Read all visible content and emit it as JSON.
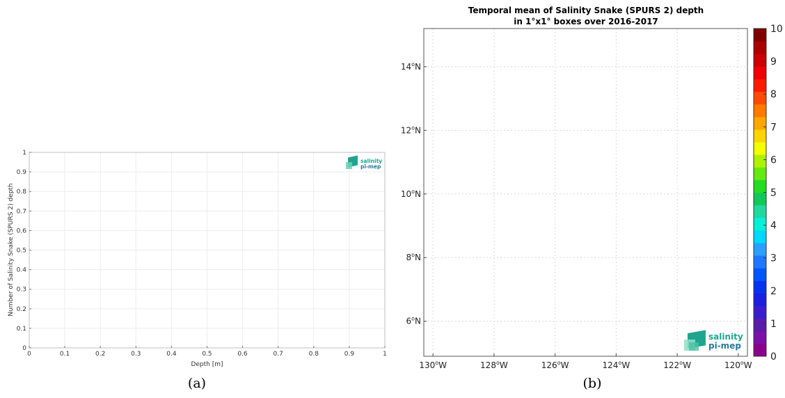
{
  "chart_data": [
    {
      "type": "line",
      "panel": "(a)",
      "title": "",
      "xlabel": "Depth [m]",
      "ylabel": "Number of Salinity Snake (SPURS 2) depth",
      "xlim": [
        0,
        1
      ],
      "ylim": [
        0,
        1
      ],
      "xticks": [
        0,
        0.1,
        0.2,
        0.3,
        0.4,
        0.5,
        0.6,
        0.7,
        0.8,
        0.9,
        1
      ],
      "yticks": [
        0,
        0.1,
        0.2,
        0.3,
        0.4,
        0.5,
        0.6,
        0.7,
        0.8,
        0.9,
        1
      ],
      "grid": true,
      "series": [],
      "logo": {
        "line1": "salinity",
        "line2": "pi-mep"
      }
    },
    {
      "type": "heatmap",
      "panel": "(b)",
      "title_lines": [
        "Temporal mean of Salinity Snake (SPURS 2) depth",
        "in 1°x1° boxes over 2016-2017"
      ],
      "xlim": [
        -130.3,
        -119.7
      ],
      "ylim": [
        4.9,
        15.2
      ],
      "xticks": [
        -130,
        -128,
        -126,
        -124,
        -122,
        -120
      ],
      "xtick_labels": [
        "130°W",
        "128°W",
        "126°W",
        "124°W",
        "122°W",
        "120°W"
      ],
      "yticks": [
        6,
        8,
        10,
        12,
        14
      ],
      "ytick_labels": [
        "6°N",
        "8°N",
        "10°N",
        "12°N",
        "14°N"
      ],
      "grid": true,
      "values": [],
      "colorbar": {
        "min": 0,
        "max": 10,
        "ticks": [
          0,
          1,
          2,
          3,
          4,
          5,
          6,
          7,
          8,
          9,
          10
        ],
        "colors": [
          "#8b008b",
          "#7a10a8",
          "#5a1aaa",
          "#3a1ccc",
          "#1a20dd",
          "#0033ee",
          "#0055ff",
          "#1e78ff",
          "#2b9fff",
          "#00d8ff",
          "#00f0d8",
          "#22d8a0",
          "#11c85a",
          "#22dd22",
          "#66e811",
          "#aef200",
          "#f2ff00",
          "#ffd400",
          "#ffa600",
          "#ff7a00",
          "#ff4a00",
          "#ff1a00",
          "#f00000",
          "#cc0000",
          "#aa0000",
          "#800000"
        ]
      },
      "logo": {
        "line1": "salinity",
        "line2": "pi-mep"
      }
    }
  ],
  "captions": [
    "(a)",
    "(b)"
  ]
}
